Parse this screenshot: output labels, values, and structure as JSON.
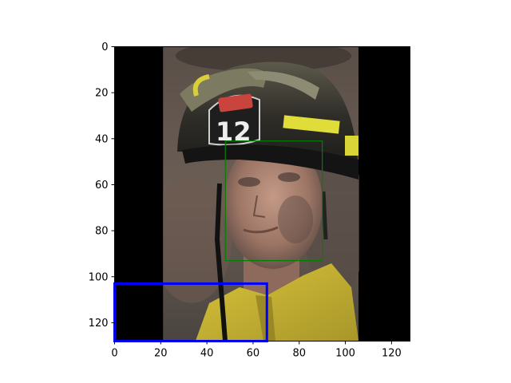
{
  "chart_data": {
    "type": "image",
    "xlim": [
      0,
      128
    ],
    "ylim": [
      128,
      0
    ],
    "y_inverted": true,
    "x_ticks": [
      0,
      20,
      40,
      60,
      80,
      100,
      120
    ],
    "y_ticks": [
      0,
      20,
      40,
      60,
      80,
      100,
      120
    ],
    "grid": false,
    "image": {
      "description_icon": "firefighter-portrait-image",
      "photo_x_range": [
        21,
        106
      ],
      "padding_color": "#000000"
    },
    "boxes": [
      {
        "name": "",
        "x": [
          48,
          90
        ],
        "y": [
          41,
          93
        ],
        "color": "#008000"
      },
      {
        "name": "",
        "x": [
          0,
          66
        ],
        "y": [
          103,
          128
        ],
        "color": "#0000ff"
      }
    ],
    "helmet_number": "12"
  }
}
